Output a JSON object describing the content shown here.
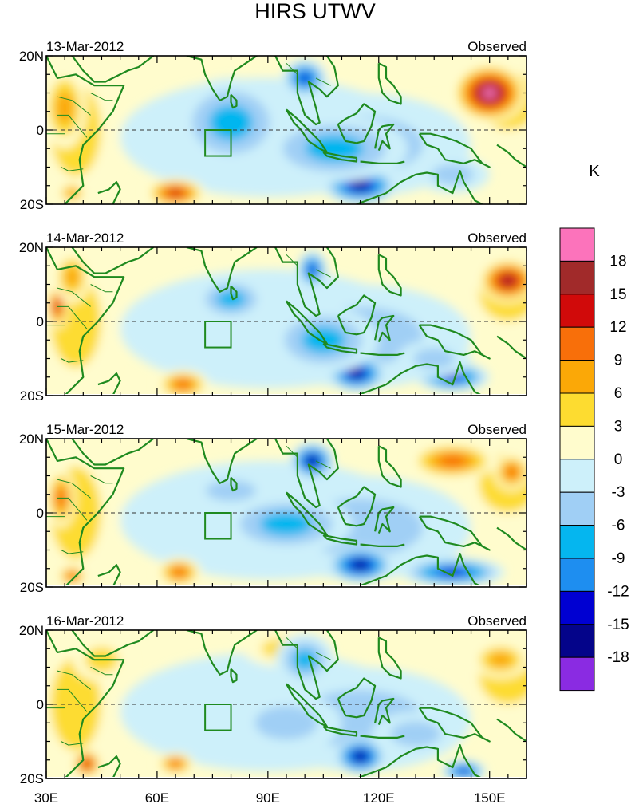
{
  "chart_data": {
    "type": "heatmap",
    "title": "HIRS UTWV",
    "units_label": "K",
    "x_ticks": [
      "30E",
      "60E",
      "90E",
      "120E",
      "150E"
    ],
    "x_tick_values": [
      30,
      60,
      90,
      120,
      150
    ],
    "y_ticks": [
      "20N",
      "0",
      "20S"
    ],
    "y_tick_values": [
      20,
      0,
      -20
    ],
    "xlim": [
      30,
      160
    ],
    "ylim": [
      -20,
      20
    ],
    "colorbar": {
      "levels": [
        "18",
        "15",
        "12",
        "9",
        "6",
        "3",
        "0",
        "-3",
        "-6",
        "-9",
        "-12",
        "-15",
        "-18"
      ],
      "colors": [
        "#fc73bb",
        "#a12a2a",
        "#d10a0a",
        "#f86f0a",
        "#fba807",
        "#fddc30",
        "#fffccd",
        "#cdf0fa",
        "#a0cff5",
        "#05b6ef",
        "#1e8ef0",
        "#0000d2",
        "#04048a",
        "#8a2be2"
      ],
      "colors_order": "top-to-bottom"
    },
    "panels": [
      {
        "date": "13-Mar-2012",
        "label": "Observed",
        "anomalies": [
          {
            "lon": 35,
            "lat": 6,
            "value": 8,
            "rx": 6,
            "ry": 11
          },
          {
            "lon": 37,
            "lat": -17,
            "value": 9,
            "rx": 4,
            "ry": 3
          },
          {
            "lon": 65,
            "lat": -17,
            "value": 15,
            "rx": 8,
            "ry": 4
          },
          {
            "lon": 150,
            "lat": 10,
            "value": 19,
            "rx": 10,
            "ry": 8
          },
          {
            "lon": 118,
            "lat": 17,
            "value": 2,
            "rx": 25,
            "ry": 3
          },
          {
            "lon": 80,
            "lat": 2,
            "value": -8,
            "rx": 15,
            "ry": 12
          },
          {
            "lon": 100,
            "lat": 14,
            "value": -15,
            "rx": 6,
            "ry": 5
          },
          {
            "lon": 115,
            "lat": -15,
            "value": -16,
            "rx": 10,
            "ry": 5
          },
          {
            "lon": 108,
            "lat": -5,
            "value": -9,
            "rx": 20,
            "ry": 9
          },
          {
            "lon": 140,
            "lat": -12,
            "value": -6,
            "rx": 10,
            "ry": 5
          }
        ]
      },
      {
        "date": "14-Mar-2012",
        "label": "Observed",
        "anomalies": [
          {
            "lon": 33,
            "lat": 4,
            "value": 14,
            "rx": 3,
            "ry": 6
          },
          {
            "lon": 37,
            "lat": 12,
            "value": 7,
            "rx": 5,
            "ry": 7
          },
          {
            "lon": 67,
            "lat": -17,
            "value": 12,
            "rx": 7,
            "ry": 4
          },
          {
            "lon": 155,
            "lat": 11,
            "value": 16,
            "rx": 8,
            "ry": 6
          },
          {
            "lon": 80,
            "lat": 6,
            "value": -9,
            "rx": 10,
            "ry": 6
          },
          {
            "lon": 102,
            "lat": 14,
            "value": -15,
            "rx": 4,
            "ry": 5
          },
          {
            "lon": 114,
            "lat": -14,
            "value": -16,
            "rx": 8,
            "ry": 5
          },
          {
            "lon": 140,
            "lat": -15,
            "value": -14,
            "rx": 10,
            "ry": 4
          },
          {
            "lon": 105,
            "lat": -5,
            "value": -8,
            "rx": 15,
            "ry": 9
          },
          {
            "lon": 135,
            "lat": -10,
            "value": -6,
            "rx": 10,
            "ry": 5
          }
        ]
      },
      {
        "date": "15-Mar-2012",
        "label": "Observed",
        "anomalies": [
          {
            "lon": 34,
            "lat": 4,
            "value": 10,
            "rx": 4,
            "ry": 8
          },
          {
            "lon": 37,
            "lat": -17,
            "value": 12,
            "rx": 4,
            "ry": 3
          },
          {
            "lon": 66,
            "lat": -16,
            "value": 12,
            "rx": 6,
            "ry": 4
          },
          {
            "lon": 140,
            "lat": 14,
            "value": 11,
            "rx": 12,
            "ry": 5
          },
          {
            "lon": 156,
            "lat": 11,
            "value": 10,
            "rx": 5,
            "ry": 5
          },
          {
            "lon": 102,
            "lat": 14,
            "value": -16,
            "rx": 6,
            "ry": 5
          },
          {
            "lon": 115,
            "lat": -14,
            "value": -16,
            "rx": 9,
            "ry": 5
          },
          {
            "lon": 140,
            "lat": -16,
            "value": -13,
            "rx": 14,
            "ry": 4
          },
          {
            "lon": 95,
            "lat": -3,
            "value": -9,
            "rx": 18,
            "ry": 8
          },
          {
            "lon": 80,
            "lat": 6,
            "value": -6,
            "rx": 12,
            "ry": 5
          }
        ]
      },
      {
        "date": "16-Mar-2012",
        "label": "Observed",
        "anomalies": [
          {
            "lon": 41,
            "lat": -16,
            "value": 14,
            "rx": 4,
            "ry": 4
          },
          {
            "lon": 65,
            "lat": -16,
            "value": 12,
            "rx": 5,
            "ry": 3
          },
          {
            "lon": 45,
            "lat": 12,
            "value": 6,
            "rx": 8,
            "ry": 6
          },
          {
            "lon": 95,
            "lat": 15,
            "value": 5,
            "rx": 12,
            "ry": 5
          },
          {
            "lon": 153,
            "lat": 12,
            "value": 8,
            "rx": 8,
            "ry": 5
          },
          {
            "lon": 115,
            "lat": -14,
            "value": -16,
            "rx": 7,
            "ry": 5
          },
          {
            "lon": 143,
            "lat": -18,
            "value": -13,
            "rx": 6,
            "ry": 3
          },
          {
            "lon": 100,
            "lat": 12,
            "value": -7,
            "rx": 8,
            "ry": 7
          },
          {
            "lon": 95,
            "lat": -5,
            "value": -5,
            "rx": 15,
            "ry": 8
          },
          {
            "lon": 130,
            "lat": -8,
            "value": -6,
            "rx": 12,
            "ry": 6
          }
        ]
      }
    ]
  }
}
